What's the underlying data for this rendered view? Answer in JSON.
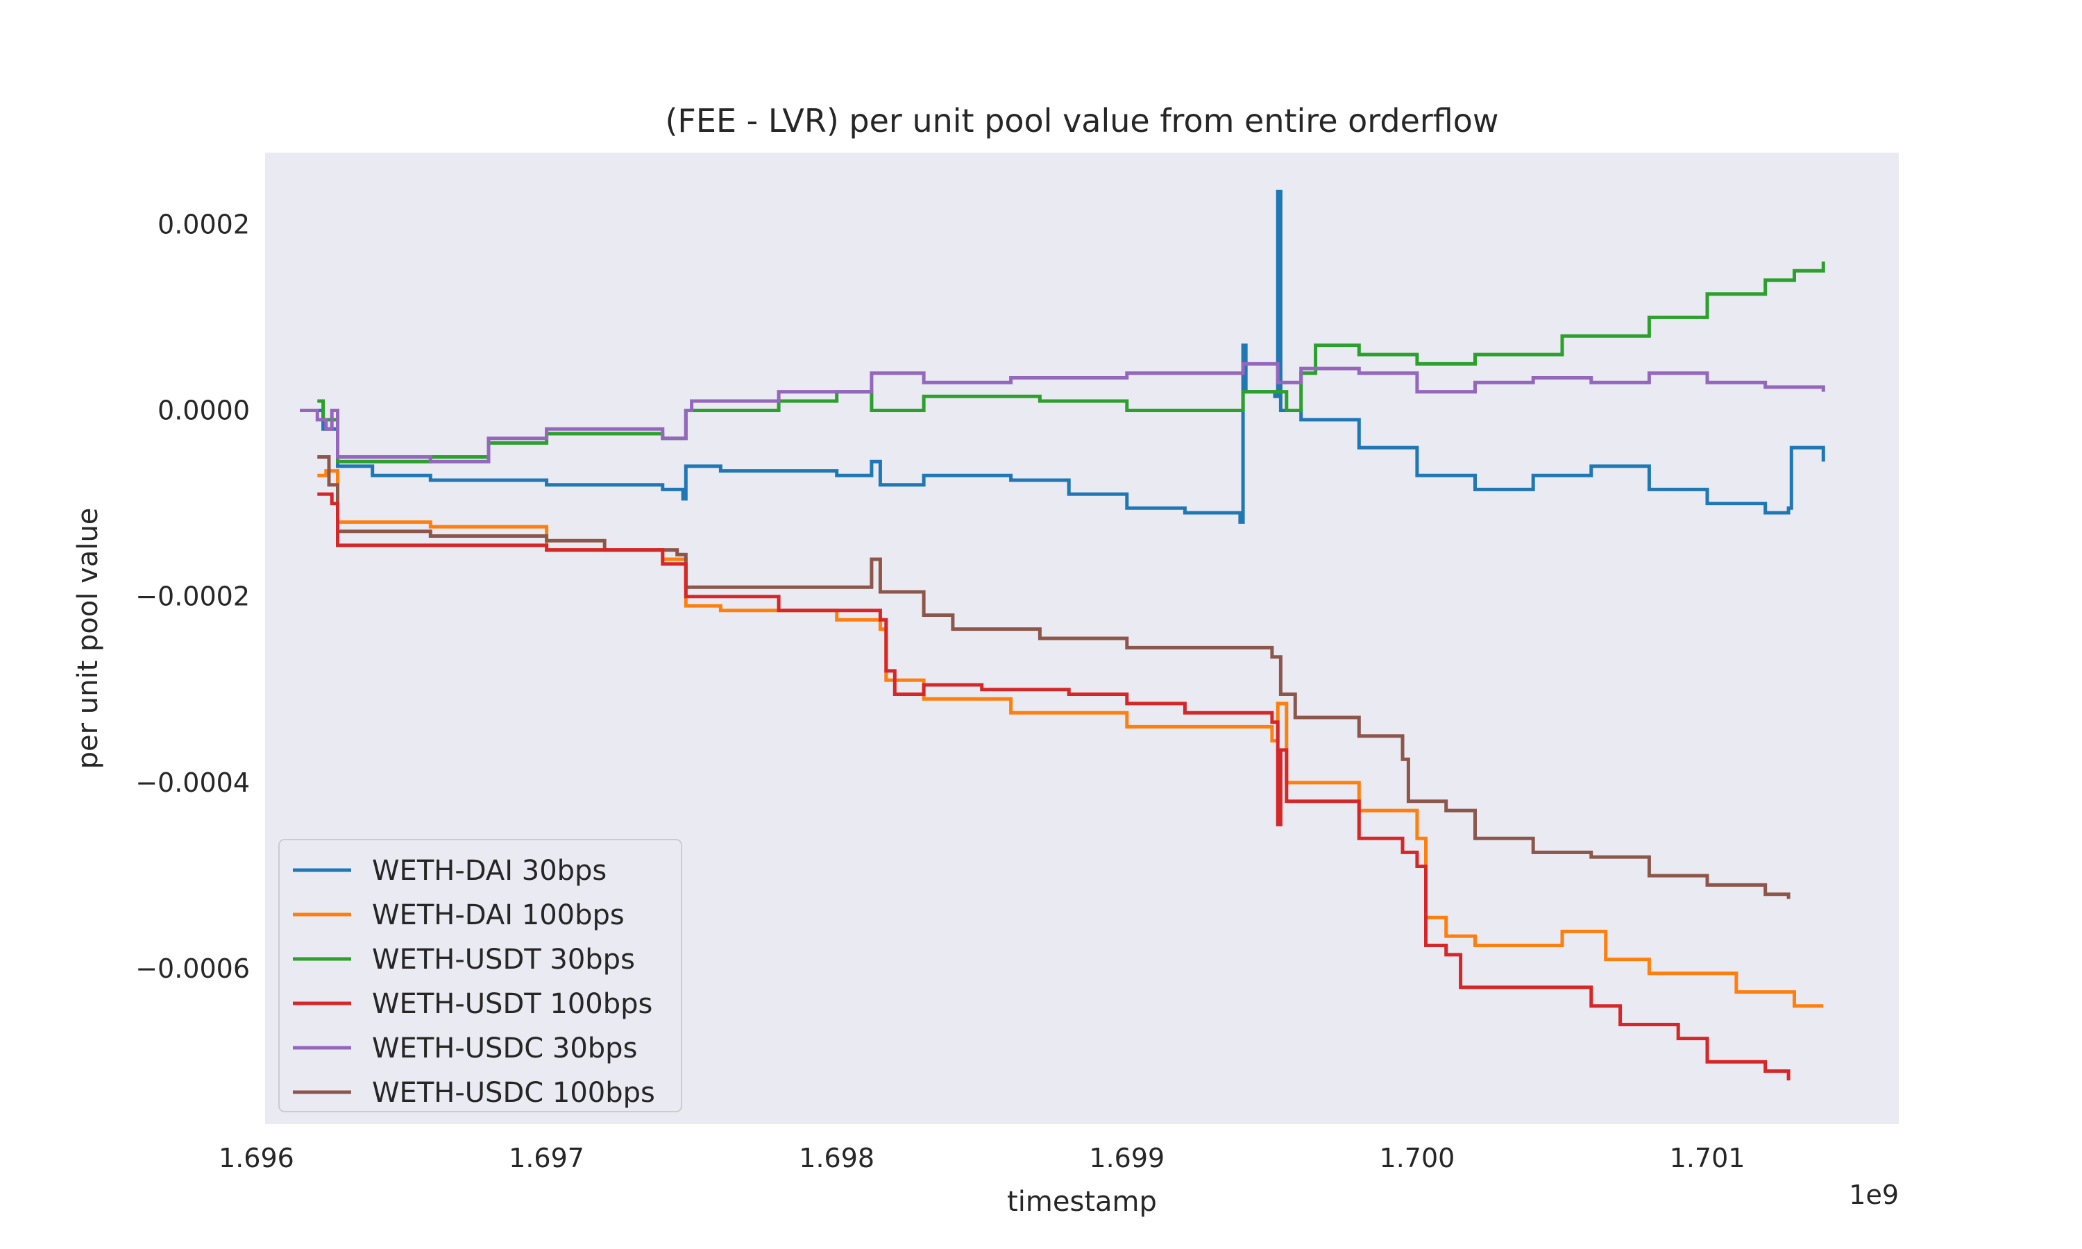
{
  "chart_data": {
    "type": "line",
    "title": "(FEE - LVR) per unit pool value from entire orderflow",
    "xlabel": "timestamp",
    "ylabel": "per unit pool value",
    "x_offset_label": "1e9",
    "x_unit_scale": 1000000000.0,
    "xlim": [
      1.69603,
      1.70166
    ],
    "ylim": [
      -0.000767,
      0.000277
    ],
    "xticks": [
      1.696,
      1.697,
      1.698,
      1.699,
      1.7,
      1.701
    ],
    "xtick_labels": [
      "1.696",
      "1.697",
      "1.698",
      "1.699",
      "1.700",
      "1.701"
    ],
    "yticks": [
      0.0002,
      0.0,
      -0.0002,
      -0.0004,
      -0.0006
    ],
    "ytick_labels": [
      "0.0002",
      "0.0000",
      "−0.0002",
      "−0.0004",
      "−0.0006"
    ],
    "grid": false,
    "legend_position": "lower-left",
    "series": [
      {
        "name": "WETH-DAI 30bps",
        "color": "#1f77b4",
        "points": [
          [
            1.69615,
            0.0
          ],
          [
            1.69621,
            0.0
          ],
          [
            1.69623,
            -2e-05
          ],
          [
            1.69627,
            -2e-05
          ],
          [
            1.69628,
            -6e-05
          ],
          [
            1.6964,
            -7e-05
          ],
          [
            1.6966,
            -7.5e-05
          ],
          [
            1.697,
            -8e-05
          ],
          [
            1.6974,
            -8.5e-05
          ],
          [
            1.69747,
            -9.5e-05
          ],
          [
            1.69748,
            -6e-05
          ],
          [
            1.6976,
            -6.5e-05
          ],
          [
            1.698,
            -7e-05
          ],
          [
            1.69812,
            -5.5e-05
          ],
          [
            1.69815,
            -8e-05
          ],
          [
            1.6983,
            -7e-05
          ],
          [
            1.6986,
            -7.5e-05
          ],
          [
            1.6988,
            -9e-05
          ],
          [
            1.699,
            -0.000105
          ],
          [
            1.6992,
            -0.00011
          ],
          [
            1.69939,
            -0.00012
          ],
          [
            1.6994,
            7e-05
          ],
          [
            1.69941,
            2e-05
          ],
          [
            1.69951,
            1.5e-05
          ],
          [
            1.69952,
            0.000235
          ],
          [
            1.69953,
            0.0
          ],
          [
            1.6996,
            -1e-05
          ],
          [
            1.6998,
            -4e-05
          ],
          [
            1.7,
            -7e-05
          ],
          [
            1.7002,
            -8.5e-05
          ],
          [
            1.7004,
            -7e-05
          ],
          [
            1.7006,
            -6e-05
          ],
          [
            1.7008,
            -8.5e-05
          ],
          [
            1.701,
            -0.0001
          ],
          [
            1.7012,
            -0.00011
          ],
          [
            1.70128,
            -0.000105
          ],
          [
            1.70129,
            -4e-05
          ],
          [
            1.7014,
            -5.5e-05
          ]
        ]
      },
      {
        "name": "WETH-DAI 100bps",
        "color": "#ff7f0e",
        "points": [
          [
            1.69621,
            -7e-05
          ],
          [
            1.69624,
            -6.5e-05
          ],
          [
            1.69628,
            -0.00012
          ],
          [
            1.6966,
            -0.000125
          ],
          [
            1.697,
            -0.00015
          ],
          [
            1.6974,
            -0.00016
          ],
          [
            1.69748,
            -0.00021
          ],
          [
            1.6976,
            -0.000215
          ],
          [
            1.698,
            -0.000225
          ],
          [
            1.69815,
            -0.000235
          ],
          [
            1.69817,
            -0.00029
          ],
          [
            1.6983,
            -0.00031
          ],
          [
            1.6986,
            -0.000325
          ],
          [
            1.699,
            -0.00034
          ],
          [
            1.6995,
            -0.000355
          ],
          [
            1.69952,
            -0.000315
          ],
          [
            1.69955,
            -0.0004
          ],
          [
            1.6998,
            -0.00043
          ],
          [
            1.7,
            -0.00046
          ],
          [
            1.70003,
            -0.000545
          ],
          [
            1.7001,
            -0.000565
          ],
          [
            1.7002,
            -0.000575
          ],
          [
            1.7005,
            -0.00056
          ],
          [
            1.70065,
            -0.00059
          ],
          [
            1.7008,
            -0.000605
          ],
          [
            1.7011,
            -0.000625
          ],
          [
            1.7013,
            -0.00064
          ],
          [
            1.7014,
            -0.00064
          ]
        ]
      },
      {
        "name": "WETH-USDT 30bps",
        "color": "#2ca02c",
        "points": [
          [
            1.69621,
            1e-05
          ],
          [
            1.69623,
            -1e-05
          ],
          [
            1.69628,
            -5.5e-05
          ],
          [
            1.6966,
            -5e-05
          ],
          [
            1.6968,
            -3.5e-05
          ],
          [
            1.697,
            -2.5e-05
          ],
          [
            1.6974,
            -3e-05
          ],
          [
            1.69748,
            -0.0
          ],
          [
            1.6978,
            1e-05
          ],
          [
            1.698,
            2e-05
          ],
          [
            1.69812,
            0.0
          ],
          [
            1.6983,
            1.5e-05
          ],
          [
            1.6987,
            1e-05
          ],
          [
            1.699,
            0.0
          ],
          [
            1.6994,
            2e-05
          ],
          [
            1.6995,
            2e-05
          ],
          [
            1.69955,
            0.0
          ],
          [
            1.6996,
            4e-05
          ],
          [
            1.69965,
            7e-05
          ],
          [
            1.6998,
            6e-05
          ],
          [
            1.7,
            5e-05
          ],
          [
            1.7002,
            6e-05
          ],
          [
            1.7005,
            8e-05
          ],
          [
            1.7008,
            0.0001
          ],
          [
            1.701,
            0.000125
          ],
          [
            1.7012,
            0.00014
          ],
          [
            1.7013,
            0.00015
          ],
          [
            1.7014,
            0.00016
          ]
        ]
      },
      {
        "name": "WETH-USDC 100bps",
        "color": "#8c564b",
        "points": [
          [
            1.69621,
            -5e-05
          ],
          [
            1.69625,
            -8e-05
          ],
          [
            1.69628,
            -0.00013
          ],
          [
            1.6966,
            -0.000135
          ],
          [
            1.697,
            -0.00014
          ],
          [
            1.6972,
            -0.00015
          ],
          [
            1.69745,
            -0.000155
          ],
          [
            1.69748,
            -0.00019
          ],
          [
            1.698,
            -0.00019
          ],
          [
            1.69812,
            -0.00016
          ],
          [
            1.69815,
            -0.000195
          ],
          [
            1.6983,
            -0.00022
          ],
          [
            1.6984,
            -0.000235
          ],
          [
            1.6987,
            -0.000245
          ],
          [
            1.699,
            -0.000255
          ],
          [
            1.6995,
            -0.000265
          ],
          [
            1.69953,
            -0.000305
          ],
          [
            1.69958,
            -0.00033
          ],
          [
            1.6998,
            -0.00035
          ],
          [
            1.69995,
            -0.000375
          ],
          [
            1.69997,
            -0.00042
          ],
          [
            1.7001,
            -0.00043
          ],
          [
            1.7002,
            -0.00046
          ],
          [
            1.7004,
            -0.000475
          ],
          [
            1.7006,
            -0.00048
          ],
          [
            1.7008,
            -0.0005
          ],
          [
            1.701,
            -0.00051
          ],
          [
            1.7012,
            -0.00052
          ],
          [
            1.70128,
            -0.000525
          ]
        ]
      },
      {
        "name": "WETH-USDT 100bps",
        "color": "#d62728",
        "points": [
          [
            1.69621,
            -9e-05
          ],
          [
            1.69626,
            -0.0001
          ],
          [
            1.69628,
            -0.000145
          ],
          [
            1.6966,
            -0.000145
          ],
          [
            1.697,
            -0.00015
          ],
          [
            1.6974,
            -0.000165
          ],
          [
            1.69748,
            -0.0002
          ],
          [
            1.6978,
            -0.000215
          ],
          [
            1.698,
            -0.000215
          ],
          [
            1.69815,
            -0.000225
          ],
          [
            1.69817,
            -0.00028
          ],
          [
            1.6982,
            -0.000305
          ],
          [
            1.6983,
            -0.000295
          ],
          [
            1.6985,
            -0.0003
          ],
          [
            1.6988,
            -0.000305
          ],
          [
            1.699,
            -0.000315
          ],
          [
            1.6992,
            -0.000325
          ],
          [
            1.6995,
            -0.000335
          ],
          [
            1.69952,
            -0.000445
          ],
          [
            1.69953,
            -0.000365
          ],
          [
            1.69955,
            -0.00042
          ],
          [
            1.6998,
            -0.00046
          ],
          [
            1.69995,
            -0.000475
          ],
          [
            1.7,
            -0.00049
          ],
          [
            1.70003,
            -0.000575
          ],
          [
            1.7001,
            -0.000585
          ],
          [
            1.70015,
            -0.00062
          ],
          [
            1.7003,
            -0.00062
          ],
          [
            1.7006,
            -0.00064
          ],
          [
            1.7007,
            -0.00066
          ],
          [
            1.7009,
            -0.000675
          ],
          [
            1.701,
            -0.0007
          ],
          [
            1.7012,
            -0.00071
          ],
          [
            1.70128,
            -0.00072
          ]
        ]
      },
      {
        "name": "WETH-USDC 30bps",
        "color": "#9467bd",
        "points": [
          [
            1.69615,
            0.0
          ],
          [
            1.69621,
            -1e-05
          ],
          [
            1.69624,
            -2e-05
          ],
          [
            1.69626,
            0.0
          ],
          [
            1.69628,
            -5e-05
          ],
          [
            1.6966,
            -5.5e-05
          ],
          [
            1.6968,
            -3e-05
          ],
          [
            1.697,
            -2e-05
          ],
          [
            1.6974,
            -3e-05
          ],
          [
            1.69748,
            -0.0
          ],
          [
            1.6975,
            1e-05
          ],
          [
            1.6978,
            2e-05
          ],
          [
            1.698,
            2e-05
          ],
          [
            1.69812,
            4e-05
          ],
          [
            1.6983,
            3e-05
          ],
          [
            1.6986,
            3.5e-05
          ],
          [
            1.699,
            4e-05
          ],
          [
            1.6994,
            5e-05
          ],
          [
            1.69952,
            3e-05
          ],
          [
            1.6996,
            4.5e-05
          ],
          [
            1.6998,
            4e-05
          ],
          [
            1.7,
            2e-05
          ],
          [
            1.7002,
            3e-05
          ],
          [
            1.7004,
            3.5e-05
          ],
          [
            1.7006,
            3e-05
          ],
          [
            1.7008,
            4e-05
          ],
          [
            1.701,
            3e-05
          ],
          [
            1.7012,
            2.5e-05
          ],
          [
            1.7014,
            2e-05
          ]
        ]
      }
    ],
    "legend_order": [
      "WETH-DAI 30bps",
      "WETH-DAI 100bps",
      "WETH-USDT 30bps",
      "WETH-USDT 100bps",
      "WETH-USDC 30bps",
      "WETH-USDC 100bps"
    ]
  }
}
